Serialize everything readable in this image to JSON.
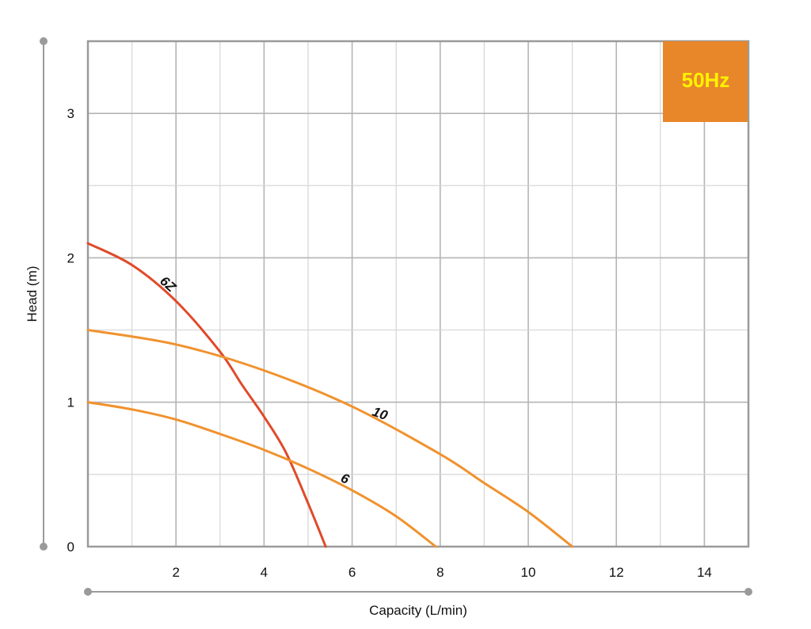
{
  "chart_data": {
    "type": "line",
    "xlabel": "Capacity (L/min)",
    "ylabel": "Head (m)",
    "xlim": [
      0,
      15
    ],
    "ylim": [
      0,
      3.5
    ],
    "x_ticks": [
      "2",
      "4",
      "6",
      "8",
      "10",
      "12",
      "14"
    ],
    "y_ticks": [
      "0",
      "1",
      "2",
      "3"
    ],
    "grid": true,
    "badge": {
      "text": "50Hz",
      "color": "#E8862A",
      "text_color": "#FFF200"
    },
    "series": [
      {
        "name": "6Z",
        "color": "#E04A2A",
        "x": [
          0,
          1,
          2,
          3,
          3.5,
          4,
          4.5,
          5,
          5.4
        ],
        "y": [
          2.1,
          1.95,
          1.7,
          1.35,
          1.12,
          0.9,
          0.65,
          0.3,
          0.0
        ]
      },
      {
        "name": "10",
        "color": "#F0922E",
        "x": [
          0,
          2,
          4,
          6,
          8,
          9,
          10,
          11
        ],
        "y": [
          1.5,
          1.4,
          1.22,
          0.97,
          0.64,
          0.44,
          0.24,
          0.0
        ]
      },
      {
        "name": "6",
        "color": "#F0922E",
        "x": [
          0,
          1,
          2,
          3,
          4,
          5,
          6,
          7,
          7.9
        ],
        "y": [
          1.0,
          0.95,
          0.88,
          0.78,
          0.67,
          0.54,
          0.39,
          0.21,
          0.0
        ]
      }
    ]
  }
}
